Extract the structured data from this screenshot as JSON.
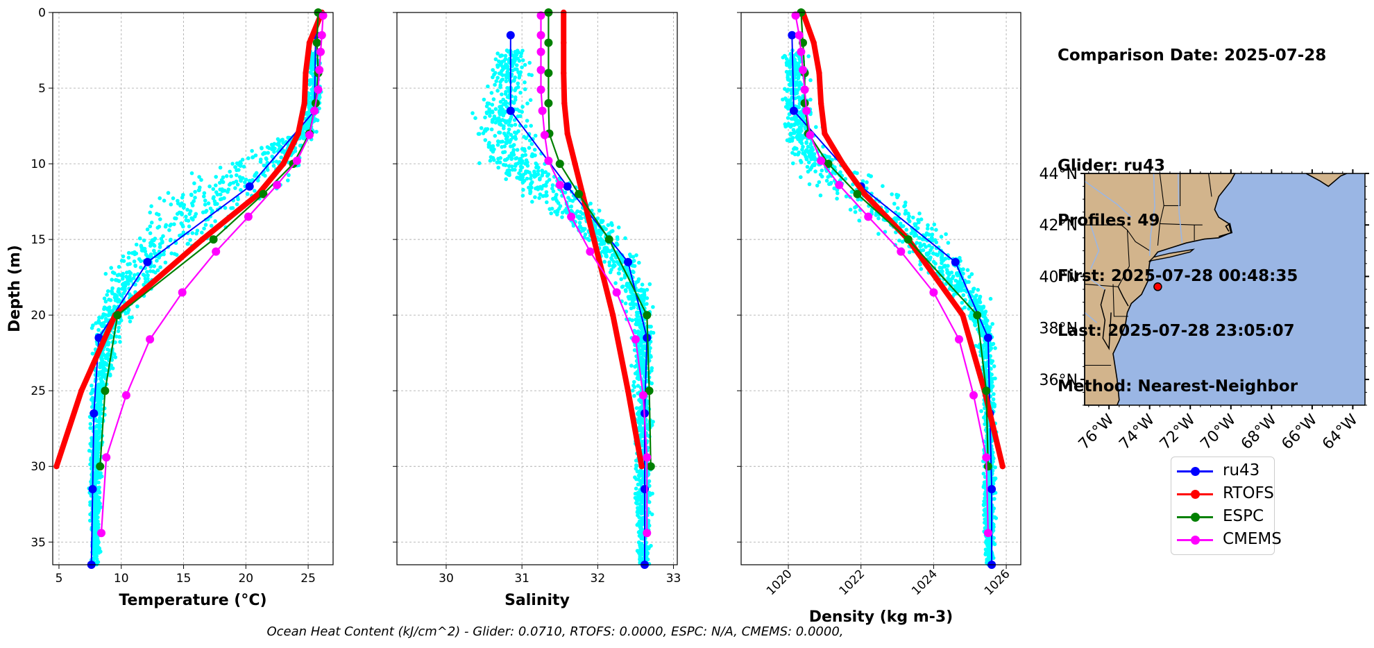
{
  "info": {
    "comparison_date": "Comparison Date: 2025-07-28",
    "glider": "Glider: ru43",
    "profiles": "Profiles: 49",
    "first": "First: 2025-07-28 00:48:35",
    "last": "Last: 2025-07-28 23:05:07",
    "method": "Method: Nearest-Neighbor"
  },
  "footer": "Ocean Heat Content (kJ/cm^2) - Glider: 0.0710,  RTOFS: 0.0000,  ESPC: N/A,  CMEMS: 0.0000,",
  "colors": {
    "ru43": "#0000ff",
    "RTOFS": "#ff0000",
    "ESPC": "#008000",
    "CMEMS": "#ff00ff",
    "scatter": "#00ffff",
    "land": "#d2b48c",
    "ocean": "#9ab6e4",
    "grid": "#b0b0b0"
  },
  "legend": [
    {
      "name": "ru43",
      "color": "#0000ff"
    },
    {
      "name": "RTOFS",
      "color": "#ff0000"
    },
    {
      "name": "ESPC",
      "color": "#008000"
    },
    {
      "name": "CMEMS",
      "color": "#ff00ff"
    }
  ],
  "chart_data": [
    {
      "type": "line",
      "xlabel": "Temperature (°C)",
      "ylabel": "Depth (m)",
      "xlim": [
        4.5,
        27
      ],
      "ylim": [
        36.5,
        0
      ],
      "xticks": [
        5,
        10,
        15,
        20,
        25
      ],
      "yticks": [
        0,
        5,
        10,
        15,
        20,
        25,
        30,
        35
      ],
      "grid": true,
      "scatter": {
        "name": "glider-observations",
        "band": [
          {
            "depth": 2.5,
            "min": 24.6,
            "max": 26.3
          },
          {
            "depth": 6,
            "min": 24.8,
            "max": 26.2
          },
          {
            "depth": 8,
            "min": 23.5,
            "max": 26.0
          },
          {
            "depth": 9,
            "min": 19.5,
            "max": 25.8
          },
          {
            "depth": 10,
            "min": 16.5,
            "max": 25.5
          },
          {
            "depth": 11,
            "min": 13.5,
            "max": 24.8
          },
          {
            "depth": 12,
            "min": 11.5,
            "max": 23.5
          },
          {
            "depth": 13,
            "min": 10.5,
            "max": 22.0
          },
          {
            "depth": 15,
            "min": 9.0,
            "max": 18.0
          },
          {
            "depth": 17,
            "min": 8.0,
            "max": 14.0
          },
          {
            "depth": 19,
            "min": 7.8,
            "max": 12.0
          },
          {
            "depth": 21,
            "min": 7.4,
            "max": 10.5
          },
          {
            "depth": 25,
            "min": 7.3,
            "max": 9.0
          },
          {
            "depth": 30,
            "min": 7.3,
            "max": 8.6
          },
          {
            "depth": 36.5,
            "min": 7.4,
            "max": 8.4
          }
        ]
      },
      "series": [
        {
          "name": "ru43",
          "depth": [
            1.5,
            6.5,
            11.5,
            16.5,
            21.5,
            26.5,
            31.5,
            36.5
          ],
          "values": [
            25.6,
            25.5,
            20.3,
            12.1,
            8.2,
            7.8,
            7.7,
            7.6
          ]
        },
        {
          "name": "RTOFS",
          "depth": [
            0,
            2,
            4,
            6,
            8,
            10,
            12,
            15,
            20,
            25,
            30
          ],
          "values": [
            26.1,
            25.1,
            24.8,
            24.7,
            24.2,
            23.0,
            21.0,
            16.5,
            9.5,
            6.8,
            4.8
          ]
        },
        {
          "name": "ESPC",
          "depth": [
            0,
            2,
            4,
            6,
            8,
            10,
            12,
            15,
            20,
            25,
            30
          ],
          "values": [
            25.8,
            25.7,
            25.8,
            25.6,
            25.1,
            23.8,
            21.4,
            17.4,
            9.7,
            8.7,
            8.3
          ]
        },
        {
          "name": "CMEMS",
          "depth": [
            0.2,
            1.5,
            2.6,
            3.8,
            5.1,
            6.5,
            8.1,
            9.8,
            11.4,
            13.5,
            15.8,
            18.5,
            21.6,
            25.3,
            29.4,
            34.4
          ],
          "values": [
            26.2,
            26.1,
            26.0,
            25.9,
            25.8,
            25.5,
            25.1,
            24.1,
            22.5,
            20.2,
            17.6,
            14.9,
            12.3,
            10.4,
            8.8,
            8.4
          ]
        }
      ]
    },
    {
      "type": "line",
      "xlabel": "Salinity",
      "xlim": [
        29.35,
        33.05
      ],
      "ylim": [
        36.5,
        0
      ],
      "xticks": [
        30,
        31,
        32,
        33
      ],
      "yticks": [
        0,
        5,
        10,
        15,
        20,
        25,
        30,
        35
      ],
      "grid": true,
      "scatter": {
        "name": "glider-observations",
        "band": [
          {
            "depth": 2.5,
            "min": 30.6,
            "max": 31.15
          },
          {
            "depth": 5,
            "min": 30.3,
            "max": 31.2
          },
          {
            "depth": 8,
            "min": 30.2,
            "max": 31.3
          },
          {
            "depth": 10,
            "min": 30.3,
            "max": 31.6
          },
          {
            "depth": 12,
            "min": 30.8,
            "max": 32.0
          },
          {
            "depth": 14,
            "min": 31.5,
            "max": 32.3
          },
          {
            "depth": 16,
            "min": 31.9,
            "max": 32.6
          },
          {
            "depth": 18,
            "min": 32.2,
            "max": 32.75
          },
          {
            "depth": 21,
            "min": 32.4,
            "max": 32.78
          },
          {
            "depth": 26,
            "min": 32.45,
            "max": 32.75
          },
          {
            "depth": 32,
            "min": 32.45,
            "max": 32.75
          },
          {
            "depth": 36.5,
            "min": 32.5,
            "max": 32.72
          }
        ]
      },
      "series": [
        {
          "name": "ru43",
          "depth": [
            1.5,
            6.5,
            11.5,
            16.5,
            21.5,
            26.5,
            31.5,
            36.5
          ],
          "values": [
            30.85,
            30.85,
            31.6,
            32.4,
            32.65,
            32.62,
            32.62,
            32.62
          ]
        },
        {
          "name": "RTOFS",
          "depth": [
            0,
            2,
            4,
            6,
            8,
            10,
            12,
            15,
            20,
            25,
            30
          ],
          "values": [
            31.55,
            31.55,
            31.55,
            31.56,
            31.6,
            31.7,
            31.8,
            31.95,
            32.2,
            32.4,
            32.58
          ]
        },
        {
          "name": "ESPC",
          "depth": [
            0,
            2,
            4,
            6,
            8,
            10,
            12,
            15,
            20,
            25,
            30
          ],
          "values": [
            31.35,
            31.35,
            31.35,
            31.35,
            31.36,
            31.5,
            31.75,
            32.15,
            32.65,
            32.68,
            32.7
          ]
        },
        {
          "name": "CMEMS",
          "depth": [
            0.2,
            1.5,
            2.6,
            3.8,
            5.1,
            6.5,
            8.1,
            9.8,
            11.4,
            13.5,
            15.8,
            18.5,
            21.6,
            25.3,
            29.4,
            34.4
          ],
          "values": [
            31.25,
            31.25,
            31.25,
            31.25,
            31.25,
            31.27,
            31.3,
            31.35,
            31.5,
            31.65,
            31.9,
            32.25,
            32.5,
            32.6,
            32.65,
            32.65
          ]
        }
      ]
    },
    {
      "type": "line",
      "xlabel": "Density (kg m-3)",
      "xlim": [
        1018.7,
        1026.4
      ],
      "ylim": [
        36.5,
        0
      ],
      "xticks": [
        1020,
        1022,
        1024,
        1026
      ],
      "yticks": [
        0,
        5,
        10,
        15,
        20,
        25,
        30,
        35
      ],
      "grid": true,
      "scatter": {
        "name": "glider-observations",
        "band": [
          {
            "depth": 2.5,
            "min": 1019.8,
            "max": 1020.6
          },
          {
            "depth": 6,
            "min": 1019.7,
            "max": 1020.7
          },
          {
            "depth": 9,
            "min": 1019.7,
            "max": 1021.2
          },
          {
            "depth": 10,
            "min": 1019.8,
            "max": 1022.0
          },
          {
            "depth": 11,
            "min": 1020.0,
            "max": 1022.8
          },
          {
            "depth": 12,
            "min": 1020.4,
            "max": 1023.5
          },
          {
            "depth": 13,
            "min": 1021.2,
            "max": 1024.0
          },
          {
            "depth": 15,
            "min": 1022.5,
            "max": 1024.8
          },
          {
            "depth": 17,
            "min": 1023.5,
            "max": 1025.3
          },
          {
            "depth": 19,
            "min": 1024.5,
            "max": 1025.6
          },
          {
            "depth": 21,
            "min": 1025.1,
            "max": 1025.75
          },
          {
            "depth": 26,
            "min": 1025.3,
            "max": 1025.75
          },
          {
            "depth": 33,
            "min": 1025.3,
            "max": 1025.75
          },
          {
            "depth": 36.5,
            "min": 1025.4,
            "max": 1025.7
          }
        ]
      },
      "series": [
        {
          "name": "ru43",
          "depth": [
            1.5,
            6.5,
            11.5,
            16.5,
            21.5,
            26.5,
            31.5,
            36.5
          ],
          "values": [
            1020.1,
            1020.15,
            1022.0,
            1024.6,
            1025.5,
            1025.55,
            1025.6,
            1025.6
          ]
        },
        {
          "name": "RTOFS",
          "depth": [
            0,
            2,
            4,
            6,
            8,
            10,
            12,
            15,
            20,
            25,
            30
          ],
          "values": [
            1020.4,
            1020.7,
            1020.85,
            1020.9,
            1021.0,
            1021.5,
            1022.1,
            1023.3,
            1024.8,
            1025.4,
            1025.9
          ]
        },
        {
          "name": "ESPC",
          "depth": [
            0,
            2,
            4,
            6,
            8,
            10,
            12,
            15,
            20,
            25,
            30
          ],
          "values": [
            1020.35,
            1020.4,
            1020.45,
            1020.45,
            1020.55,
            1021.1,
            1021.9,
            1023.3,
            1025.2,
            1025.45,
            1025.5
          ]
        },
        {
          "name": "CMEMS",
          "depth": [
            0.2,
            1.5,
            2.6,
            3.8,
            5.1,
            6.5,
            8.1,
            9.8,
            11.4,
            13.5,
            15.8,
            18.5,
            21.6,
            25.3,
            29.4,
            34.4
          ],
          "values": [
            1020.2,
            1020.3,
            1020.35,
            1020.4,
            1020.45,
            1020.5,
            1020.6,
            1020.9,
            1021.4,
            1022.2,
            1023.1,
            1024.0,
            1024.7,
            1025.1,
            1025.45,
            1025.5
          ]
        }
      ]
    },
    {
      "type": "map",
      "lon_range": [
        -77.2,
        -63.4
      ],
      "lat_range": [
        35,
        44
      ],
      "xticks": [
        "76°W",
        "74°W",
        "72°W",
        "70°W",
        "68°W",
        "66°W",
        "64°W"
      ],
      "yticks": [
        "44°N",
        "42°N",
        "40°N",
        "38°N",
        "36°N"
      ],
      "marker": {
        "name": "glider-location",
        "lon": -73.6,
        "lat": 39.6,
        "color": "#ff0000"
      }
    }
  ]
}
